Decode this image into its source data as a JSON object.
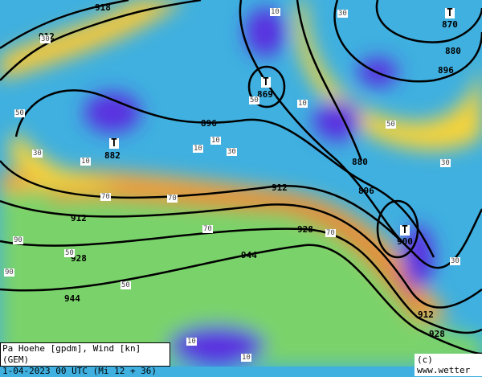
{
  "legend": {
    "line1": "Pa Hoehe [gpdm], Wind [kn] (GEM)",
    "line2": "1-04-2023 00 UTC (Mi 12 + 36)"
  },
  "copyright": "(c) www.wetter",
  "colors": {
    "calm": "#5a2ee0",
    "low": "#3fb0e0",
    "mid": "#7ad36a",
    "high": "#f5d33a",
    "jet": "#f08a2a",
    "max": "#d8452a"
  },
  "pressure_centers": [
    {
      "marker": "T",
      "value": "870"
    },
    {
      "marker": "T",
      "value": "869"
    },
    {
      "marker": "T",
      "value": "882"
    },
    {
      "marker": "T",
      "value": "900"
    }
  ],
  "contour_labels": [
    "918",
    "912",
    "912",
    "912",
    "912",
    "896",
    "896",
    "896",
    "880",
    "880",
    "928",
    "928",
    "928",
    "944",
    "944"
  ],
  "wind_labels": [
    "10",
    "30",
    "50",
    "70",
    "90",
    "10",
    "30",
    "50",
    "70",
    "10",
    "30",
    "10",
    "50",
    "70",
    "10",
    "30",
    "10",
    "30",
    "50",
    "70",
    "90",
    "10",
    "30",
    "50"
  ]
}
